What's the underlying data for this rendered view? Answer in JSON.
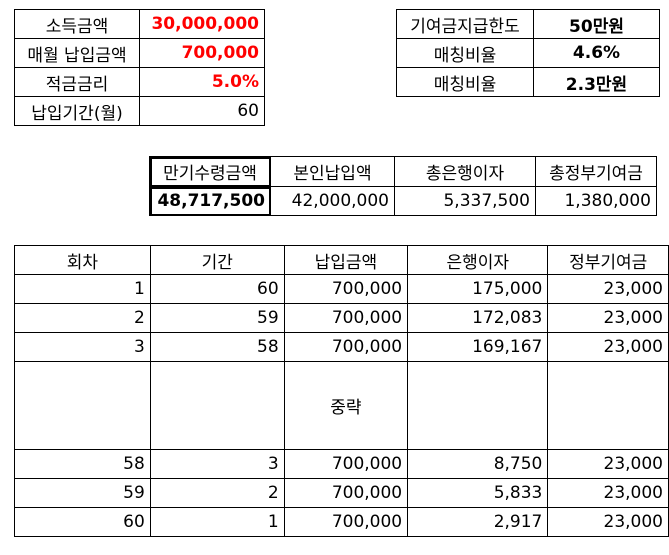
{
  "inputs": [
    {
      "label": "소득금액",
      "value": "30,000,000"
    },
    {
      "label": "매월 납입금액",
      "value": "700,000"
    },
    {
      "label": "적금금리",
      "value": "5.0%"
    },
    {
      "label": "납입기간(월)",
      "value": "60"
    }
  ],
  "support": [
    {
      "label": "기여금지급한도",
      "value": "50만원"
    },
    {
      "label": "매칭비율",
      "value": "4.6%"
    },
    {
      "label": "매칭비율",
      "value": "2.3만원"
    }
  ],
  "summary": {
    "headers": [
      "만기수령금액",
      "본인납입액",
      "총은행이자",
      "총정부기여금"
    ],
    "values": [
      "48,717,500",
      "42,000,000",
      "5,337,500",
      "1,380,000"
    ]
  },
  "schedule": {
    "headers": [
      "회차",
      "기간",
      "납입금액",
      "은행이자",
      "정부기여금"
    ],
    "rows_top": [
      [
        "1",
        "60",
        "700,000",
        "175,000",
        "23,000"
      ],
      [
        "2",
        "59",
        "700,000",
        "172,083",
        "23,000"
      ],
      [
        "3",
        "58",
        "700,000",
        "169,167",
        "23,000"
      ]
    ],
    "omitted_label": "중략",
    "rows_bottom": [
      [
        "58",
        "3",
        "700,000",
        "8,750",
        "23,000"
      ],
      [
        "59",
        "2",
        "700,000",
        "5,833",
        "23,000"
      ],
      [
        "60",
        "1",
        "700,000",
        "2,917",
        "23,000"
      ]
    ]
  }
}
